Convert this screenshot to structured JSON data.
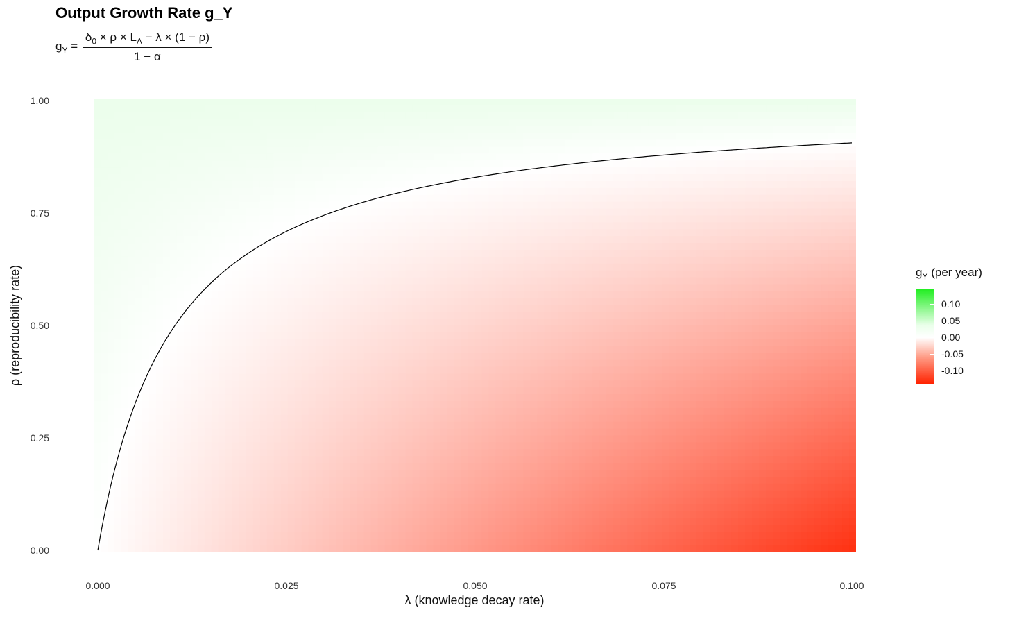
{
  "title": "Output Growth Rate g_Y",
  "formula": {
    "lhs": "g",
    "lhs_sub": "Y",
    "eq": "=",
    "num_delta": "δ",
    "num_delta_sub": "0",
    "num_rest1": " × ρ × L",
    "num_L_sub": "A",
    "num_rest2": " − λ × (1 − ρ)",
    "den": "1 − α"
  },
  "chart_data": {
    "type": "heatmap",
    "title": "Output Growth Rate g_Y",
    "xlabel": "λ (knowledge decay rate)",
    "ylabel": "ρ (reproducibility rate)",
    "xlim": [
      0,
      0.1
    ],
    "ylim": [
      0,
      1
    ],
    "x_ticks": [
      "0.000",
      "0.025",
      "0.050",
      "0.075",
      "0.100"
    ],
    "y_ticks": [
      "0.00",
      "0.25",
      "0.50",
      "0.75",
      "1.00"
    ],
    "x_tick_values": [
      0,
      0.025,
      0.05,
      0.075,
      0.1
    ],
    "y_tick_values": [
      0,
      0.25,
      0.5,
      0.75,
      1
    ],
    "fill_range": [
      -0.12,
      0.13
    ],
    "colors": {
      "low": "#ff2200",
      "mid": "#ffffff",
      "high": "#22ee22"
    },
    "contour_level": 0,
    "contour_color": "#000000",
    "zero_contour": {
      "lambda": [
        0,
        0.002,
        0.005,
        0.01,
        0.015,
        0.02,
        0.025,
        0.03,
        0.04,
        0.05,
        0.06,
        0.07,
        0.08,
        0.09,
        0.1
      ],
      "rho": [
        0,
        0.17,
        0.34,
        0.505,
        0.605,
        0.67,
        0.718,
        0.755,
        0.804,
        0.838,
        0.86,
        0.877,
        0.891,
        0.901,
        0.909
      ]
    },
    "legend": {
      "title_main": "g",
      "title_sub": "Y",
      "title_rest": " (per year)",
      "position": "right",
      "ticks": [
        "0.10",
        "0.05",
        "0.00",
        "-0.05",
        "-0.10"
      ],
      "tick_values": [
        0.1,
        0.05,
        0,
        -0.05,
        -0.1
      ]
    },
    "grid": false
  }
}
